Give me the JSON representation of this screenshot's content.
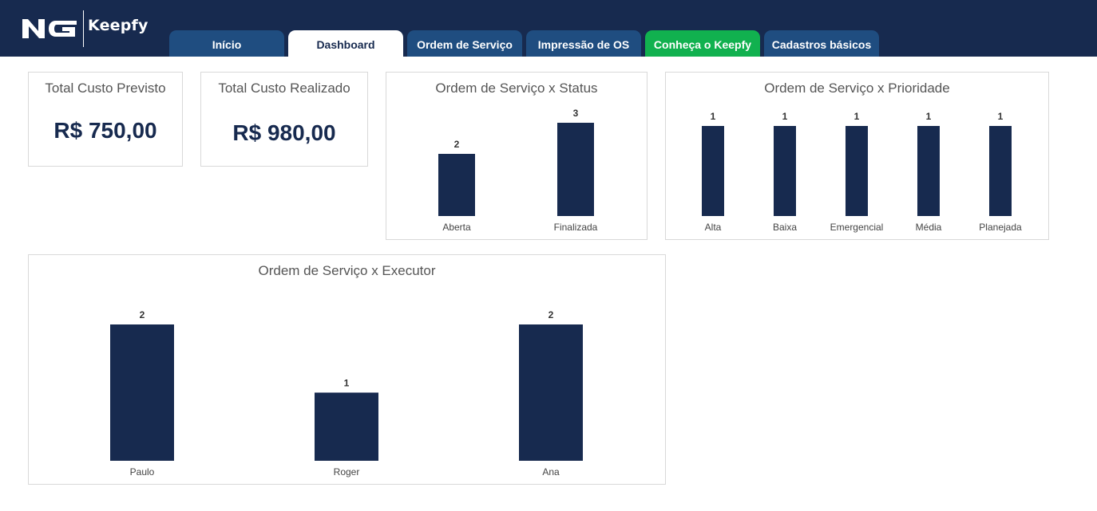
{
  "brand": {
    "name": "Keepfy",
    "mark_text": "NG"
  },
  "colors": {
    "header": "#172a4f",
    "tab": "#1f4d80",
    "tab_active": "#ffffff",
    "tab_highlight": "#11b14f",
    "bar": "#172a4f"
  },
  "tabs": [
    {
      "label": "Início"
    },
    {
      "label": "Dashboard"
    },
    {
      "label": "Ordem de Serviço"
    },
    {
      "label": "Impressão de OS"
    },
    {
      "label": "Conheça o Keepfy"
    },
    {
      "label": "Cadastros básicos"
    }
  ],
  "kpis": {
    "previsto": {
      "title": "Total Custo Previsto",
      "value": "R$ 750,00"
    },
    "realizado": {
      "title": "Total Custo Realizado",
      "value": "R$ 980,00"
    }
  },
  "chart_data": [
    {
      "type": "bar",
      "title": "Ordem de Serviço x Status",
      "categories": [
        "Aberta",
        "Finalizada"
      ],
      "values": [
        2,
        3
      ],
      "ylim": [
        0,
        3
      ]
    },
    {
      "type": "bar",
      "title": "Ordem de Serviço x Prioridade",
      "categories": [
        "Alta",
        "Baixa",
        "Emergencial",
        "Média",
        "Planejada"
      ],
      "values": [
        1,
        1,
        1,
        1,
        1
      ],
      "ylim": [
        0,
        1
      ]
    },
    {
      "type": "bar",
      "title": "Ordem de Serviço x Executor",
      "categories": [
        "Paulo",
        "Roger",
        "Ana"
      ],
      "values": [
        2,
        1,
        2
      ],
      "ylim": [
        0,
        2
      ]
    }
  ]
}
